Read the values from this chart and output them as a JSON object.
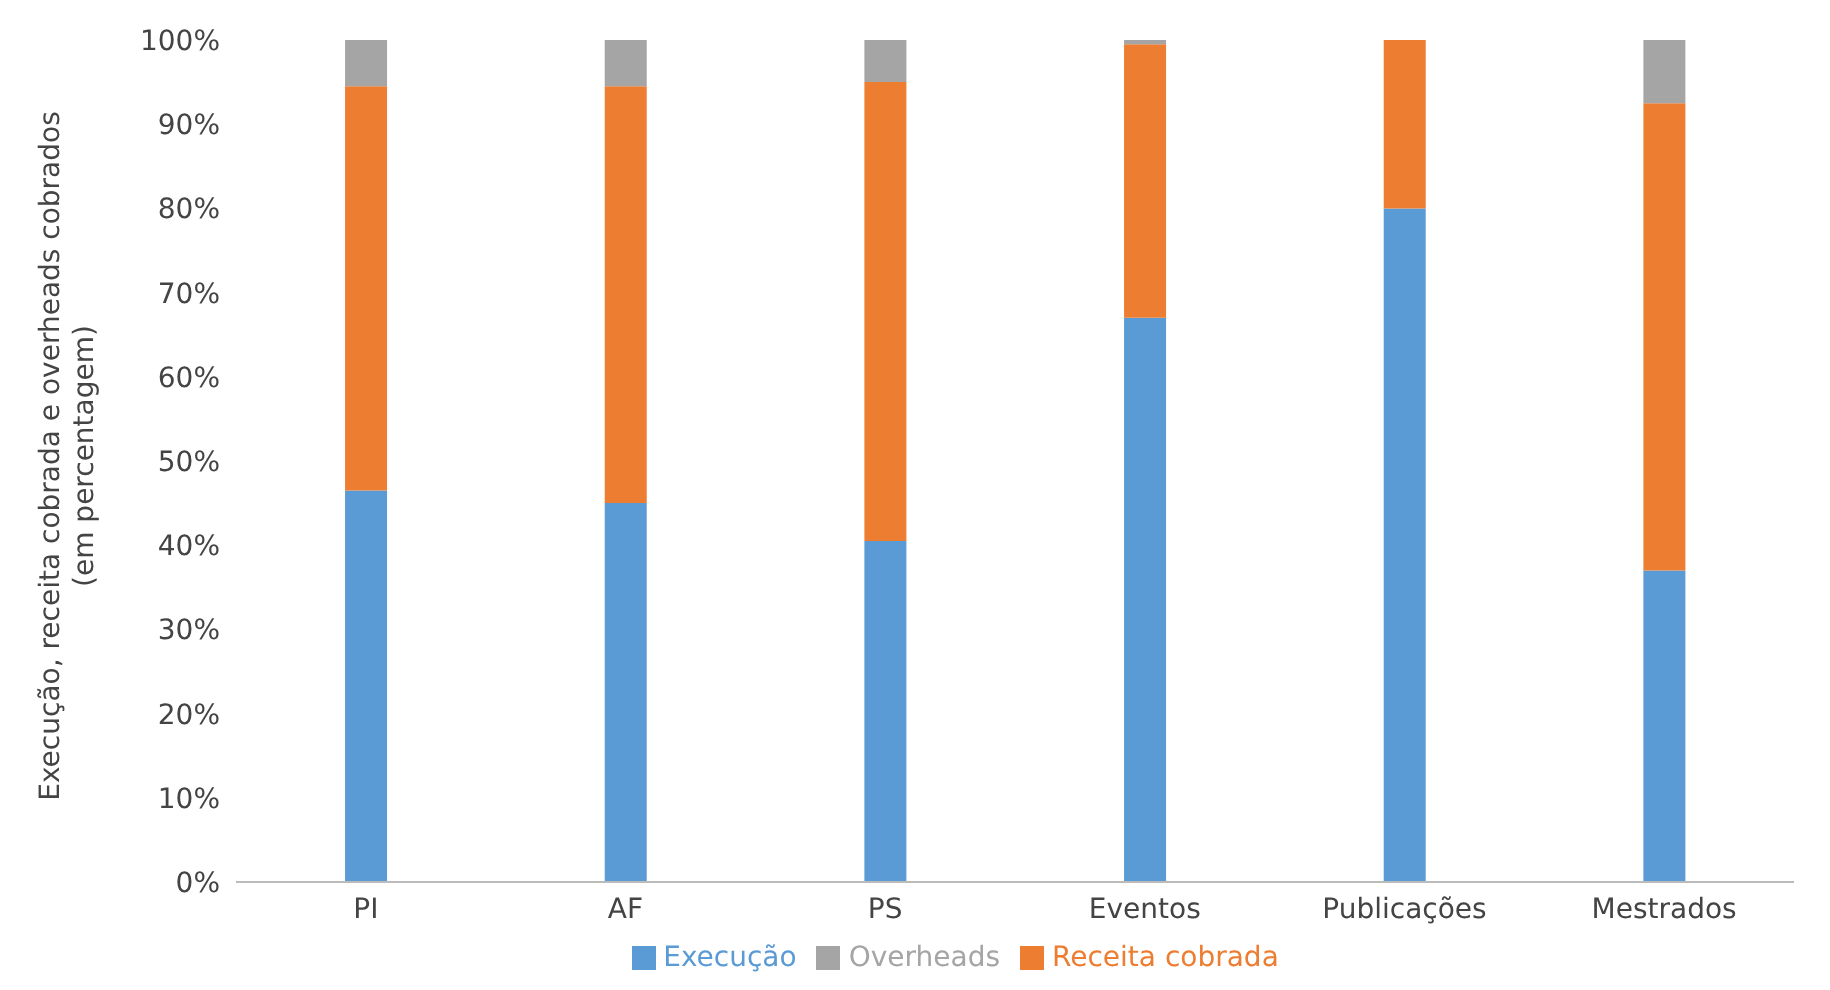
{
  "chart_data": {
    "type": "bar",
    "stacked": true,
    "ylabel": "Execução, receita cobrada e overheads cobrados  (em percentagem)",
    "categories": [
      "PI",
      "AF",
      "PS",
      "Eventos",
      "Publicações",
      "Mestrados"
    ],
    "series": [
      {
        "name": "Execução",
        "color": "#5b9bd5",
        "values": [
          46.5,
          45,
          40.5,
          67,
          80,
          37
        ]
      },
      {
        "name": "Receita cobrada",
        "color": "#ed7d31",
        "values": [
          48,
          49.5,
          54.5,
          32.5,
          20,
          55.5
        ]
      },
      {
        "name": "Overheads",
        "color": "#a5a5a5",
        "values": [
          5.5,
          5.5,
          5,
          0.5,
          0,
          7.5
        ]
      }
    ],
    "ylim": [
      0,
      100
    ],
    "yticks": [
      {
        "value": 0,
        "label": "0%"
      },
      {
        "value": 10,
        "label": "10%"
      },
      {
        "value": 20,
        "label": "20%"
      },
      {
        "value": 30,
        "label": "30%"
      },
      {
        "value": 40,
        "label": "40%"
      },
      {
        "value": 50,
        "label": "50%"
      },
      {
        "value": 60,
        "label": "60%"
      },
      {
        "value": 70,
        "label": "70%"
      },
      {
        "value": 80,
        "label": "80%"
      },
      {
        "value": 90,
        "label": "90%"
      },
      {
        "value": 100,
        "label": "100%"
      }
    ],
    "legend": "bottom"
  }
}
